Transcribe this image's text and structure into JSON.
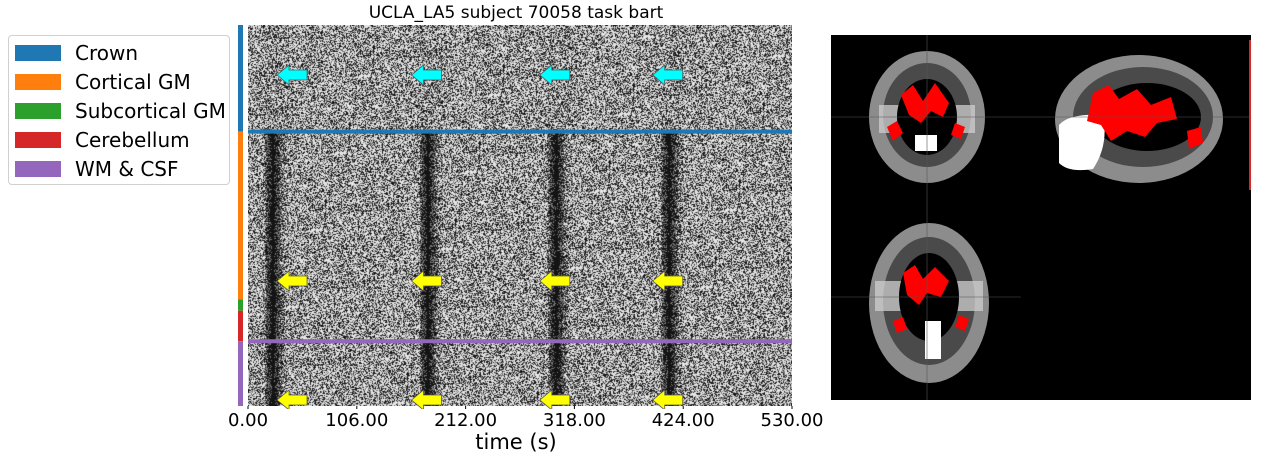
{
  "chart_data": {
    "type": "heatmap",
    "title": "UCLA_LA5 subject 70058 task bart",
    "xlabel": "time (s)",
    "xlim": [
      0,
      530
    ],
    "xticks": [
      0,
      106,
      212,
      318,
      424,
      530
    ],
    "xtick_labels": [
      "0.00",
      "106.00",
      "212.00",
      "318.00",
      "424.00",
      "530.00"
    ],
    "legend": {
      "placement": "upper-left outside",
      "entries": [
        {
          "label": "Crown",
          "color": "#1f77b4"
        },
        {
          "label": "Cortical GM",
          "color": "#ff7f0e"
        },
        {
          "label": "Subcortical GM",
          "color": "#2ca02c"
        },
        {
          "label": "Cerebellum",
          "color": "#d62728"
        },
        {
          "label": "WM & CSF",
          "color": "#9467bd"
        }
      ]
    },
    "segments": [
      {
        "label": "Crown",
        "fraction": 0.28,
        "color": "#1f77b4"
      },
      {
        "label": "Cortical GM",
        "fraction": 0.44,
        "color": "#ff7f0e"
      },
      {
        "label": "Subcortical GM",
        "fraction": 0.03,
        "color": "#2ca02c"
      },
      {
        "label": "Cerebellum",
        "fraction": 0.08,
        "color": "#d62728"
      },
      {
        "label": "WM & CSF",
        "fraction": 0.17,
        "color": "#9467bd"
      }
    ],
    "event_markers_time": [
      40,
      171,
      296,
      406
    ],
    "dark_band_times": [
      20,
      171,
      296,
      406
    ],
    "marker_colors": {
      "Crown": "#00ffff",
      "Cortical GM": "#ffff00",
      "WM & CSF": "#ffff00"
    },
    "grid": false
  },
  "mosaic": {
    "views": [
      "coronal",
      "sagittal",
      "axial"
    ],
    "overlay_color": "#ff0000",
    "background": "#000000"
  }
}
